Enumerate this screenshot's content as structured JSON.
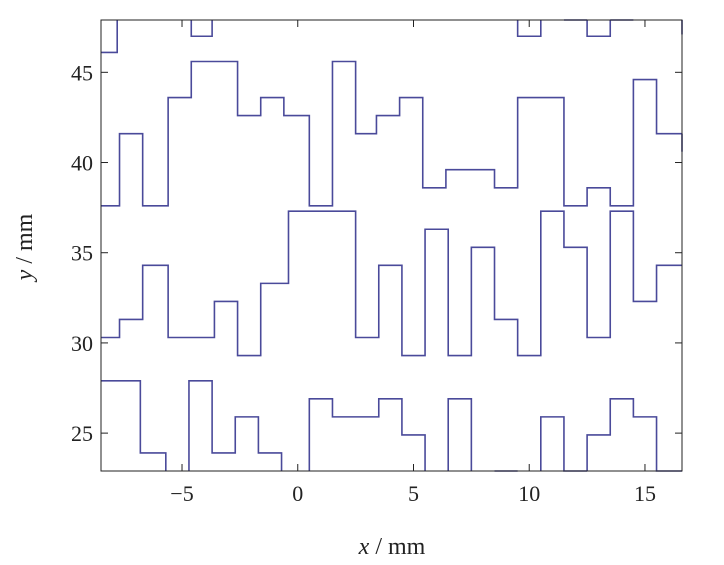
{
  "chart_data": {
    "type": "line",
    "step": true,
    "xlabel_var": "x",
    "xlabel_unit": " / mm",
    "ylabel_var": "y",
    "ylabel_unit": " / mm",
    "xlim": [
      -8.5,
      16.6
    ],
    "ylim": [
      22.9,
      47.9
    ],
    "xticks": [
      -5,
      0,
      5,
      10,
      15
    ],
    "xtick_labels": [
      "−5",
      "0",
      "5",
      "10",
      "15"
    ],
    "yticks": [
      25,
      30,
      35,
      40,
      45
    ],
    "ytick_labels": [
      "25",
      "30",
      "35",
      "40",
      "45"
    ],
    "grid": false,
    "line_color": "#4a4a9a",
    "series": [
      {
        "x": [
          -8.5,
          -7.8,
          -7.8
        ],
        "y": [
          46.1,
          46.1,
          47.9
        ]
      },
      {
        "x": [
          -4.6,
          -4.6,
          -3.7,
          -3.7
        ],
        "y": [
          47.9,
          47.0,
          47.0,
          47.9
        ]
      },
      {
        "x": [
          -8.5,
          -7.7,
          -7.7,
          -6.7,
          -6.7,
          -5.6,
          -5.6,
          -4.6,
          -4.6,
          -2.6,
          -2.6,
          -1.6,
          -1.6,
          -0.6,
          -0.6,
          0.5,
          0.5,
          1.5,
          1.5,
          2.5,
          2.5,
          3.4,
          3.4,
          4.4,
          4.4,
          5.4,
          5.4,
          6.4,
          6.4,
          8.5,
          8.5,
          9.5,
          9.5,
          11.5,
          11.5,
          12.5,
          12.5,
          13.5,
          13.5,
          14.5,
          14.5,
          15.5,
          15.5,
          16.6
        ],
        "y": [
          37.6,
          37.6,
          41.6,
          41.6,
          37.6,
          37.6,
          43.6,
          43.6,
          45.6,
          45.6,
          42.6,
          42.6,
          43.6,
          43.6,
          42.6,
          42.6,
          37.6,
          37.6,
          45.6,
          45.6,
          41.6,
          41.6,
          42.6,
          42.6,
          43.6,
          43.6,
          38.6,
          38.6,
          39.6,
          39.6,
          38.6,
          38.6,
          43.6,
          43.6,
          37.6,
          37.6,
          38.6,
          38.6,
          37.6,
          37.6,
          44.6,
          44.6,
          41.6,
          41.6
        ]
      },
      {
        "x": [
          9.5,
          9.5,
          10.5,
          10.5
        ],
        "y": [
          47.9,
          47.0,
          47.0,
          47.9
        ]
      },
      {
        "x": [
          11.5,
          12.5
        ],
        "y": [
          47.9,
          47.9
        ]
      },
      {
        "x": [
          12.5,
          12.5,
          13.5,
          13.5
        ],
        "y": [
          47.9,
          47.0,
          47.0,
          47.9
        ]
      },
      {
        "x": [
          13.5,
          14.5
        ],
        "y": [
          47.9,
          47.9
        ]
      },
      {
        "x": [
          16.6,
          16.6
        ],
        "y": [
          47.1,
          47.9
        ]
      },
      {
        "x": [
          16.6,
          16.6
        ],
        "y": [
          40.6,
          41.6
        ]
      },
      {
        "x": [
          -8.5,
          -7.7,
          -7.7,
          -6.7,
          -6.7,
          -5.6,
          -5.6,
          -3.6,
          -3.6,
          -2.6,
          -2.6,
          -1.6,
          -1.6,
          -0.4,
          -0.4,
          2.5,
          2.5,
          3.5,
          3.5,
          4.5,
          4.5,
          5.5,
          5.5,
          6.5,
          6.5,
          7.5,
          7.5,
          8.5,
          8.5,
          9.5,
          9.5,
          10.5,
          10.5,
          11.5,
          11.5,
          12.5,
          12.5,
          13.5,
          13.5,
          14.5,
          14.5,
          15.5,
          15.5,
          16.6
        ],
        "y": [
          30.3,
          30.3,
          31.3,
          31.3,
          34.3,
          34.3,
          30.3,
          30.3,
          32.3,
          32.3,
          29.3,
          29.3,
          33.3,
          33.3,
          37.3,
          37.3,
          30.3,
          30.3,
          34.3,
          34.3,
          29.3,
          29.3,
          36.3,
          36.3,
          29.3,
          29.3,
          35.3,
          35.3,
          31.3,
          31.3,
          29.3,
          29.3,
          37.3,
          37.3,
          35.3,
          35.3,
          30.3,
          30.3,
          37.3,
          37.3,
          32.3,
          32.3,
          34.3,
          34.3
        ]
      },
      {
        "x": [
          -8.5,
          -6.8,
          -6.8,
          -5.7,
          -5.7
        ],
        "y": [
          27.9,
          27.9,
          23.9,
          23.9,
          22.9
        ]
      },
      {
        "x": [
          -4.7,
          -4.7,
          -3.7,
          -3.7,
          -2.7,
          -2.7,
          -1.7,
          -1.7,
          -0.7,
          -0.7
        ],
        "y": [
          22.9,
          27.9,
          27.9,
          23.9,
          23.9,
          25.9,
          25.9,
          23.9,
          23.9,
          22.9
        ]
      },
      {
        "x": [
          0.5,
          0.5,
          1.5,
          1.5,
          3.5,
          3.5,
          4.5,
          4.5,
          5.5,
          5.5
        ],
        "y": [
          22.9,
          26.9,
          26.9,
          25.9,
          25.9,
          26.9,
          26.9,
          24.9,
          24.9,
          22.9
        ]
      },
      {
        "x": [
          6.5,
          6.5,
          7.5,
          7.5
        ],
        "y": [
          22.9,
          26.9,
          26.9,
          22.9
        ]
      },
      {
        "x": [
          8.5,
          9.5
        ],
        "y": [
          22.9,
          22.9
        ]
      },
      {
        "x": [
          10.5,
          10.5,
          11.5,
          11.5,
          12.5
        ],
        "y": [
          22.9,
          25.9,
          25.9,
          22.9,
          22.9
        ]
      },
      {
        "x": [
          12.5,
          12.5,
          13.5,
          13.5,
          14.5,
          14.5,
          15.5,
          15.5,
          16.6
        ],
        "y": [
          22.9,
          24.9,
          24.9,
          26.9,
          26.9,
          25.9,
          25.9,
          22.9,
          22.9
        ]
      }
    ]
  }
}
